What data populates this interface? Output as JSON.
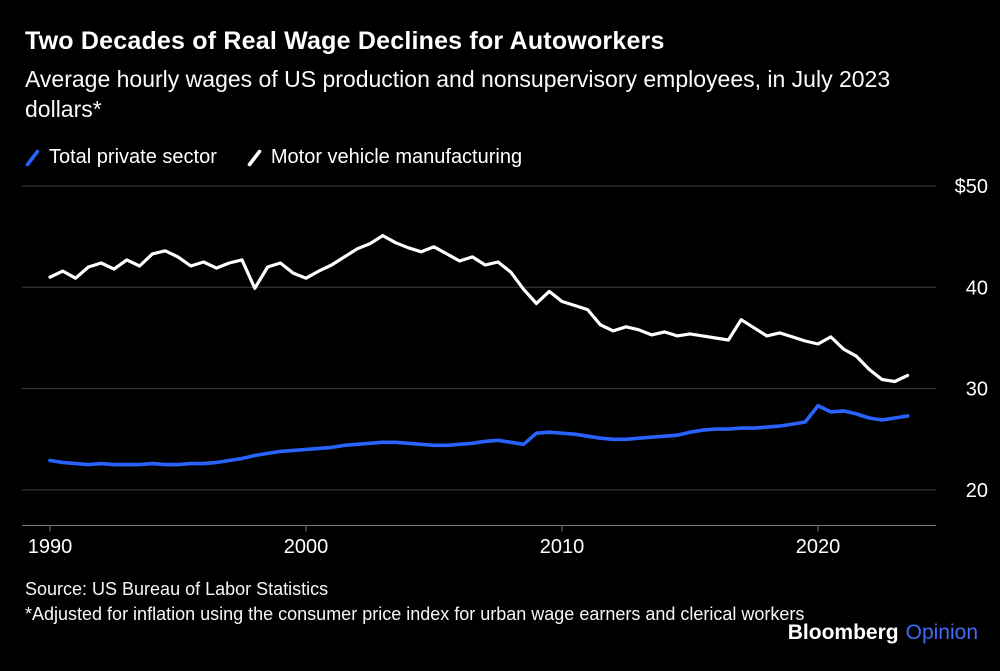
{
  "header": {
    "title": "Two Decades of Real Wage Declines for Autoworkers",
    "subtitle": "Average hourly wages of US production and nonsupervisory employees, in July 2023 dollars*"
  },
  "legend": [
    {
      "label": "Total private sector",
      "color": "#2962ff"
    },
    {
      "label": "Motor vehicle manufacturing",
      "color": "#ffffff"
    }
  ],
  "chart_data": {
    "type": "line",
    "title": "Two Decades of Real Wage Declines for Autoworkers",
    "subtitle": "Average hourly wages of US production and nonsupervisory employees, in July 2023 dollars*",
    "xlabel": "",
    "ylabel": "",
    "xlim": [
      1989.5,
      2024.3
    ],
    "ylim": [
      16.5,
      51.5
    ],
    "grid": true,
    "legend_position": "top-left",
    "grid_color": "#3f3f3f",
    "axis_color": "#7a7a7a",
    "tick_text_color": "#ffffff",
    "x_ticks": [
      {
        "value": 1990,
        "label": "1990"
      },
      {
        "value": 2000,
        "label": "2000"
      },
      {
        "value": 2010,
        "label": "2010"
      },
      {
        "value": 2020,
        "label": "2020"
      }
    ],
    "y_ticks": [
      {
        "value": 50,
        "label": "$50"
      },
      {
        "value": 40,
        "label": "40"
      },
      {
        "value": 30,
        "label": "30"
      },
      {
        "value": 20,
        "label": "20"
      }
    ],
    "x": [
      1990,
      1990.5,
      1991,
      1991.5,
      1992,
      1992.5,
      1993,
      1993.5,
      1994,
      1994.5,
      1995,
      1995.5,
      1996,
      1996.5,
      1997,
      1997.5,
      1998,
      1998.5,
      1999,
      1999.5,
      2000,
      2000.5,
      2001,
      2001.5,
      2002,
      2002.5,
      2003,
      2003.5,
      2004,
      2004.5,
      2005,
      2005.5,
      2006,
      2006.5,
      2007,
      2007.5,
      2008,
      2008.5,
      2009,
      2009.5,
      2010,
      2010.5,
      2011,
      2011.5,
      2012,
      2012.5,
      2013,
      2013.5,
      2014,
      2014.5,
      2015,
      2015.5,
      2016,
      2016.5,
      2017,
      2017.5,
      2018,
      2018.5,
      2019,
      2019.5,
      2020,
      2020.5,
      2021,
      2021.5,
      2022,
      2022.5,
      2023,
      2023.5
    ],
    "series": [
      {
        "name": "Total private sector",
        "color": "#2962ff",
        "values": [
          22.9,
          22.7,
          22.6,
          22.5,
          22.6,
          22.5,
          22.5,
          22.5,
          22.6,
          22.5,
          22.5,
          22.6,
          22.6,
          22.7,
          22.9,
          23.1,
          23.4,
          23.6,
          23.8,
          23.9,
          24.0,
          24.1,
          24.2,
          24.4,
          24.5,
          24.6,
          24.7,
          24.7,
          24.6,
          24.5,
          24.4,
          24.4,
          24.5,
          24.6,
          24.8,
          24.9,
          24.7,
          24.5,
          25.6,
          25.7,
          25.6,
          25.5,
          25.3,
          25.1,
          25.0,
          25.0,
          25.1,
          25.2,
          25.3,
          25.4,
          25.7,
          25.9,
          26.0,
          26.0,
          26.1,
          26.1,
          26.2,
          26.3,
          26.5,
          26.7,
          28.3,
          27.7,
          27.8,
          27.5,
          27.1,
          26.9,
          27.1,
          27.3
        ]
      },
      {
        "name": "Motor vehicle manufacturing",
        "color": "#ffffff",
        "values": [
          41.0,
          41.6,
          40.9,
          42.0,
          42.4,
          41.8,
          42.7,
          42.1,
          43.3,
          43.6,
          43.0,
          42.1,
          42.5,
          41.9,
          42.4,
          42.7,
          39.9,
          42.0,
          42.4,
          41.4,
          40.9,
          41.6,
          42.2,
          43.0,
          43.8,
          44.3,
          45.1,
          44.4,
          43.9,
          43.5,
          44.0,
          43.3,
          42.6,
          43.0,
          42.2,
          42.5,
          41.5,
          39.8,
          38.4,
          39.6,
          38.6,
          38.2,
          37.8,
          36.3,
          35.7,
          36.1,
          35.8,
          35.3,
          35.6,
          35.2,
          35.4,
          35.2,
          35.0,
          34.8,
          36.8,
          36.0,
          35.2,
          35.5,
          35.1,
          34.7,
          34.4,
          35.1,
          33.9,
          33.2,
          31.9,
          30.9,
          30.7,
          31.3
        ]
      }
    ]
  },
  "footer": {
    "source": "Source: US Bureau of Labor Statistics",
    "note": "*Adjusted for inflation using the consumer price index for urban wage earners and clerical workers",
    "brand": "Bloomberg",
    "brand_suffix": "Opinion",
    "brand_suffix_color": "#3e6df7"
  }
}
